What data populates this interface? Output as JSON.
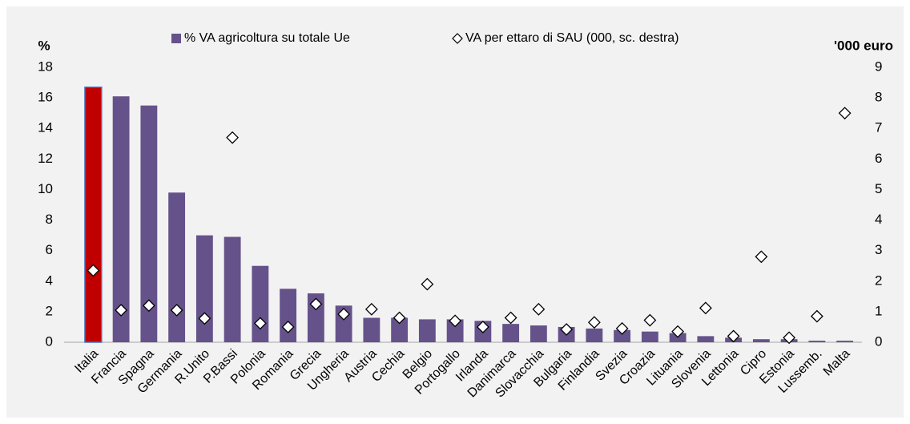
{
  "chart_data": {
    "type": "bar",
    "y_label": "%",
    "y2_label": "'000 euro",
    "categories": [
      "Italia",
      "Francia",
      "Spagna",
      "Germania",
      "R.Unito",
      "P.Bassi",
      "Polonia",
      "Romania",
      "Grecia",
      "Ungheria",
      "Austria",
      "Cechia",
      "Belgio",
      "Portogallo",
      "Irlanda",
      "Danimarca",
      "Slovacchia",
      "Bulgaria",
      "Finlandia",
      "Svezia",
      "Croazia",
      "Lituania",
      "Slovenia",
      "Lettonia",
      "Cipro",
      "Estonia",
      "Lussemb.",
      "Malta"
    ],
    "series": [
      {
        "name": "% VA agricoltura su totale Ue",
        "type": "bar",
        "axis": "y",
        "color": "#65528a",
        "colors": [
          "#c00000",
          "#65528a",
          "#65528a",
          "#65528a",
          "#65528a",
          "#65528a",
          "#65528a",
          "#65528a",
          "#65528a",
          "#65528a",
          "#65528a",
          "#65528a",
          "#65528a",
          "#65528a",
          "#65528a",
          "#65528a",
          "#65528a",
          "#65528a",
          "#65528a",
          "#65528a",
          "#65528a",
          "#65528a",
          "#65528a",
          "#65528a",
          "#65528a",
          "#65528a",
          "#65528a",
          "#65528a"
        ],
        "values": [
          16.7,
          16.1,
          15.5,
          9.8,
          7.0,
          6.9,
          5.0,
          3.5,
          3.2,
          2.4,
          1.6,
          1.6,
          1.5,
          1.5,
          1.4,
          1.2,
          1.1,
          1.0,
          0.9,
          0.8,
          0.7,
          0.6,
          0.4,
          0.3,
          0.2,
          0.2,
          0.1,
          0.1
        ]
      },
      {
        "name": "VA per ettaro di SAU (000, sc. destra)",
        "type": "scatter",
        "marker": "diamond",
        "axis": "y2",
        "color": "#ffffff",
        "values": [
          2.35,
          1.05,
          1.2,
          1.05,
          0.78,
          6.7,
          0.62,
          0.5,
          1.25,
          0.92,
          1.08,
          0.8,
          1.9,
          0.7,
          0.5,
          0.8,
          1.08,
          0.42,
          0.65,
          0.45,
          0.72,
          0.35,
          1.12,
          0.2,
          2.8,
          0.15,
          0.85,
          7.5
        ]
      }
    ],
    "ylim": [
      0,
      18
    ],
    "yticks": [
      0,
      2,
      4,
      6,
      8,
      10,
      12,
      14,
      16,
      18
    ],
    "y2lim": [
      0,
      9
    ],
    "y2ticks": [
      0,
      1,
      2,
      3,
      4,
      5,
      6,
      7,
      8,
      9
    ],
    "grid": false,
    "legend": "top"
  }
}
